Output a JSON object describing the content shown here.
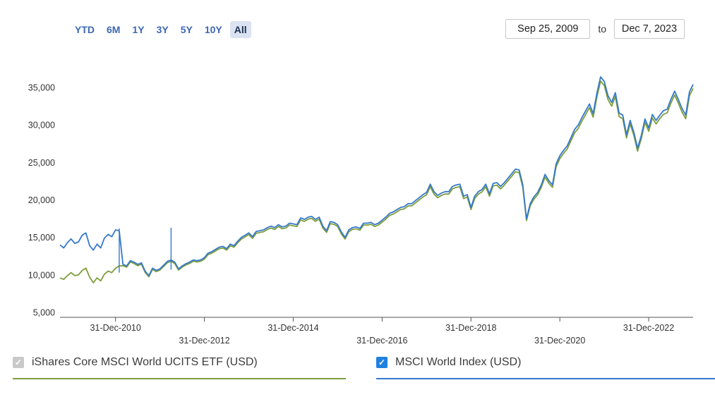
{
  "header": {
    "range_buttons": [
      "YTD",
      "6M",
      "1Y",
      "3Y",
      "5Y",
      "10Y",
      "All"
    ],
    "selected_range": "All",
    "date_from": "Sep 25, 2009",
    "to_label": "to",
    "date_to": "Dec 7, 2023"
  },
  "chart_data": {
    "type": "line",
    "title": "",
    "x_start": "Sep-2009",
    "x_end": "Dec-2023",
    "frequency": "monthly",
    "ylim": [
      4000,
      38500
    ],
    "grid": false,
    "axis_color": "#555555",
    "label_color": "#333333",
    "y_ticks": [
      {
        "value": 5000,
        "label": "5,000"
      },
      {
        "value": 10000,
        "label": "10,000"
      },
      {
        "value": 15000,
        "label": "15,000"
      },
      {
        "value": 20000,
        "label": "20,000"
      },
      {
        "value": 25000,
        "label": "25,000"
      },
      {
        "value": 30000,
        "label": "30,000"
      },
      {
        "value": 35000,
        "label": "35,000"
      }
    ],
    "x_ticks": [
      {
        "index": 15,
        "label": "31-Dec-2010",
        "row": 1
      },
      {
        "index": 39,
        "label": "31-Dec-2012",
        "row": 2
      },
      {
        "index": 63,
        "label": "31-Dec-2014",
        "row": 1
      },
      {
        "index": 87,
        "label": "31-Dec-2016",
        "row": 2
      },
      {
        "index": 111,
        "label": "31-Dec-2018",
        "row": 1
      },
      {
        "index": 135,
        "label": "31-Dec-2020",
        "row": 2
      },
      {
        "index": 159,
        "label": "31-Dec-2022",
        "row": 1
      }
    ],
    "series": [
      {
        "name": "iShares Core MSCI World UCITS ETF (USD)",
        "color": "#7e9d3c",
        "values": [
          9600,
          9400,
          9900,
          10300,
          9900,
          10000,
          10600,
          10900,
          9700,
          8950,
          9600,
          9200,
          10100,
          10500,
          10300,
          10900,
          11200,
          11230,
          11030,
          11720,
          11520,
          11230,
          11430,
          10340,
          9750,
          10740,
          10440,
          10640,
          11130,
          11620,
          11820,
          11520,
          10640,
          11030,
          11330,
          11520,
          11820,
          11720,
          11820,
          12120,
          12710,
          12900,
          13200,
          13490,
          13590,
          13300,
          13890,
          13690,
          14280,
          14780,
          15070,
          15370,
          14870,
          15560,
          15660,
          15760,
          16060,
          16250,
          16060,
          16450,
          16150,
          16250,
          16650,
          16550,
          16450,
          17340,
          17140,
          17430,
          17530,
          17140,
          17430,
          16250,
          15660,
          16840,
          16750,
          16450,
          15460,
          14780,
          15760,
          16060,
          16150,
          15960,
          16650,
          16650,
          16750,
          16450,
          16650,
          17040,
          17430,
          17930,
          18120,
          18420,
          18720,
          18810,
          19210,
          19210,
          19600,
          20000,
          20390,
          20690,
          21770,
          20780,
          20290,
          20590,
          20780,
          20780,
          21470,
          21670,
          21770,
          20190,
          20390,
          18720,
          20190,
          20780,
          21080,
          21770,
          20490,
          21870,
          21970,
          21470,
          21970,
          22560,
          23150,
          23740,
          23640,
          21670,
          17240,
          19210,
          20090,
          20690,
          21670,
          23050,
          22260,
          21670,
          24430,
          25510,
          26200,
          26790,
          27880,
          28960,
          29550,
          30540,
          31420,
          32310,
          31030,
          33690,
          35850,
          35260,
          33390,
          32500,
          33790,
          31130,
          30830,
          28270,
          30140,
          28570,
          26500,
          28170,
          30340,
          29160,
          30930,
          30140,
          30830,
          31420,
          31620,
          32900,
          33980,
          32900,
          31720,
          30830,
          33890,
          34870
        ]
      },
      {
        "name": "MSCI World Index (USD)",
        "color": "#3579cb",
        "values": [
          14000,
          13600,
          14300,
          14800,
          14200,
          14400,
          15300,
          15600,
          13900,
          13300,
          14100,
          13600,
          14900,
          15400,
          15100,
          16000,
          15900,
          11400,
          11200,
          11900,
          11700,
          11400,
          11600,
          10500,
          9900,
          10900,
          10600,
          10800,
          11300,
          11800,
          12000,
          11700,
          10800,
          11200,
          11500,
          11700,
          12000,
          11900,
          12000,
          12300,
          12900,
          13100,
          13400,
          13700,
          13800,
          13500,
          14100,
          13900,
          14500,
          15000,
          15300,
          15600,
          15100,
          15800,
          15900,
          16000,
          16300,
          16500,
          16300,
          16700,
          16400,
          16500,
          16900,
          16800,
          16700,
          17600,
          17400,
          17700,
          17800,
          17400,
          17700,
          16500,
          15900,
          17100,
          17000,
          16700,
          15700,
          15000,
          16000,
          16300,
          16400,
          16200,
          16900,
          16900,
          17000,
          16700,
          16900,
          17300,
          17700,
          18200,
          18400,
          18700,
          19000,
          19100,
          19500,
          19500,
          19900,
          20300,
          20700,
          21000,
          22100,
          21100,
          20600,
          20900,
          21100,
          21100,
          21800,
          22000,
          22100,
          20500,
          20700,
          19000,
          20500,
          21100,
          21400,
          22100,
          20800,
          22200,
          22300,
          21800,
          22300,
          22900,
          23500,
          24100,
          24000,
          22000,
          17500,
          19500,
          20400,
          21000,
          22000,
          23400,
          22600,
          22000,
          24800,
          25900,
          26600,
          27200,
          28300,
          29400,
          30000,
          31000,
          31900,
          32800,
          31500,
          34200,
          36400,
          35800,
          33900,
          33000,
          34300,
          31600,
          31300,
          28700,
          30600,
          29000,
          26900,
          28600,
          30800,
          29600,
          31400,
          30600,
          31300,
          31900,
          32100,
          33400,
          34500,
          33400,
          32200,
          31300,
          34400,
          35400
        ]
      }
    ],
    "spikes": [
      {
        "index": 16,
        "low": 10300,
        "high": 16200
      },
      {
        "index": 30,
        "low": 10700,
        "high": 16300
      }
    ]
  },
  "legend": {
    "items": [
      {
        "label": "iShares Core MSCI World UCITS ETF (USD)",
        "checkbox_color": "#c9c9c9",
        "line_color": "#7e9d3c",
        "checked": true
      },
      {
        "label": "MSCI World Index (USD)",
        "checkbox_color": "#1f80e0",
        "line_color": "#3579cb",
        "checked": true
      }
    ]
  }
}
